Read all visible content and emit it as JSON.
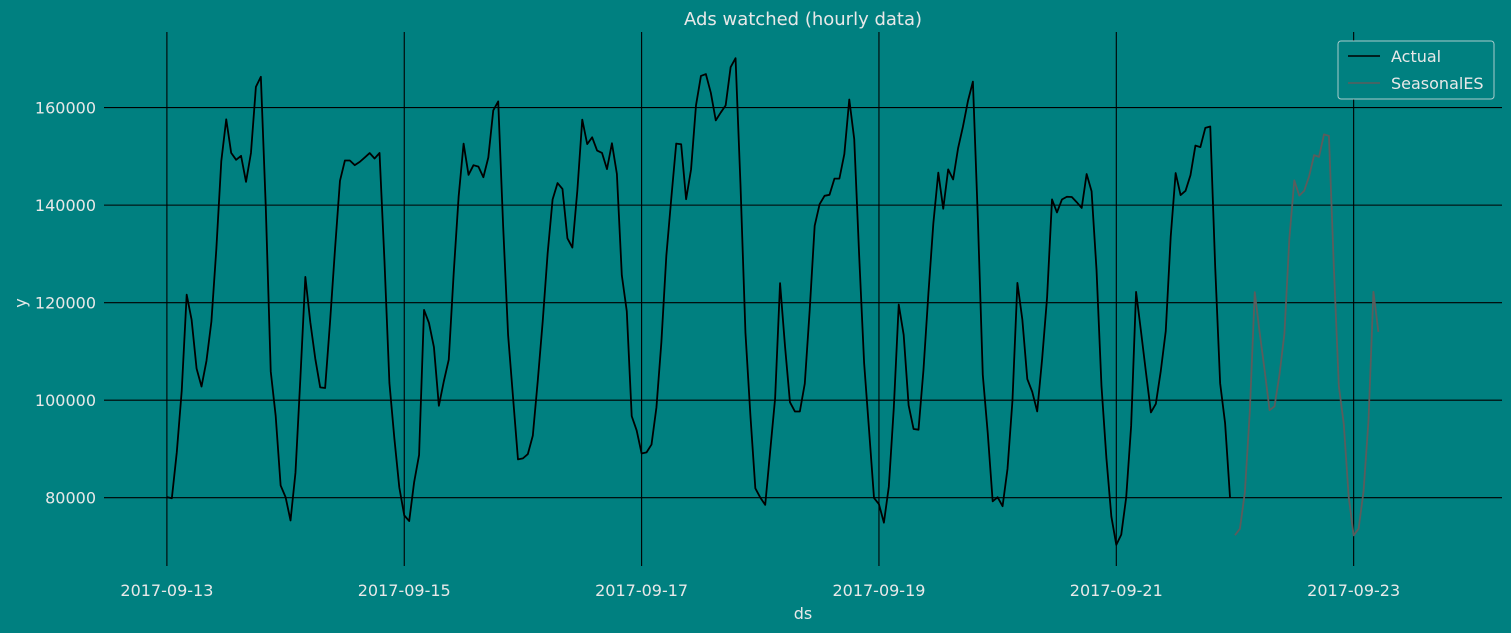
{
  "chart_data": {
    "type": "line",
    "title": "Ads watched (hourly data)",
    "xlabel": "ds",
    "ylabel": "y",
    "x_ticks": [
      "2017-09-13",
      "2017-09-15",
      "2017-09-17",
      "2017-09-19",
      "2017-09-21",
      "2017-09-23"
    ],
    "y_ticks": [
      80000,
      100000,
      120000,
      140000,
      160000
    ],
    "xlim_days_from_first_tick": [
      -0.53,
      11.25
    ],
    "ylim": [
      66000,
      175500
    ],
    "grid": true,
    "legend_position": "top-right",
    "series": [
      {
        "name": "Actual",
        "color": "#000000",
        "start": "2017-09-13 00:00",
        "interval_hours": 1,
        "values": [
          80115,
          79885,
          89325,
          101930,
          121630,
          116475,
          106495,
          102795,
          108055,
          116125,
          131030,
          149020,
          157590,
          150715,
          149295,
          150100,
          144780,
          150690,
          164250,
          166320,
          139520,
          105895,
          96780,
          82520,
          80125,
          75335,
          85105,
          104650,
          125270,
          116015,
          108565,
          102630,
          102500,
          116125,
          130995,
          144990,
          149155,
          149145,
          148190,
          148870,
          149760,
          150680,
          149560,
          150695,
          128540,
          103525,
          92170,
          82125,
          76380,
          75210,
          83190,
          88780,
          118505,
          115845,
          110905,
          98855,
          103860,
          108305,
          126075,
          141760,
          152600,
          146215,
          148190,
          147895,
          145715,
          149760,
          159420,
          161255,
          135665,
          113390,
          100570,
          87860,
          88070,
          88960,
          92730,
          103970,
          116125,
          130150,
          141150,
          144520,
          143320,
          133195,
          131295,
          142935,
          157540,
          152510,
          153910,
          151185,
          150695,
          147380,
          152675,
          146415,
          125610,
          118260,
          96730,
          93800,
          89075,
          89305,
          90900,
          98525,
          111890,
          129610,
          141350,
          152620,
          152480,
          141210,
          147305,
          160445,
          166485,
          166870,
          163030,
          157385,
          158980,
          160450,
          168280,
          170140,
          144120,
          113850,
          96920,
          81930,
          80030,
          78545,
          89530,
          100365,
          123995,
          111095,
          99585,
          97685,
          97680,
          103380,
          118565,
          135760,
          140190,
          141910,
          142115,
          145440,
          145435,
          150465,
          161665,
          153525,
          129645,
          107610,
          93880,
          79950,
          78675,
          74890,
          82310,
          98395,
          119605,
          113405,
          98955,
          94100,
          93950,
          106180,
          121870,
          136270,
          146655,
          139260,
          147325,
          145260,
          151660,
          156160,
          161370,
          165320,
          137255,
          105185,
          93260,
          79270,
          80110,
          78260,
          85950,
          99935,
          124040,
          116510,
          104335,
          101720,
          97695,
          108445,
          121050,
          141165,
          138510,
          141150,
          141720,
          141670,
          140600,
          139420,
          146380,
          142850,
          126740,
          102955,
          88100,
          76135,
          70335,
          72435,
          80065,
          94715,
          122210,
          114050,
          105690,
          97495,
          99260,
          106025,
          114155,
          133505,
          146570,
          142055,
          142930,
          146140,
          152215,
          151900,
          155830,
          156125,
          127285,
          103455,
          95290,
          80030
        ]
      },
      {
        "name": "SeasonalES",
        "color": "#5c5c5c",
        "start": "2017-09-22 00:00",
        "interval_hours": 1,
        "values": [
          72310,
          73630,
          81100,
          97650,
          122150,
          113800,
          106100,
          97950,
          98750,
          105230,
          113690,
          133190,
          145080,
          141950,
          142940,
          145950,
          150250,
          149900,
          154500,
          154200,
          127100,
          102950,
          95120,
          80150,
          72290,
          73640,
          81300,
          95760,
          122230,
          114000
        ]
      }
    ]
  }
}
